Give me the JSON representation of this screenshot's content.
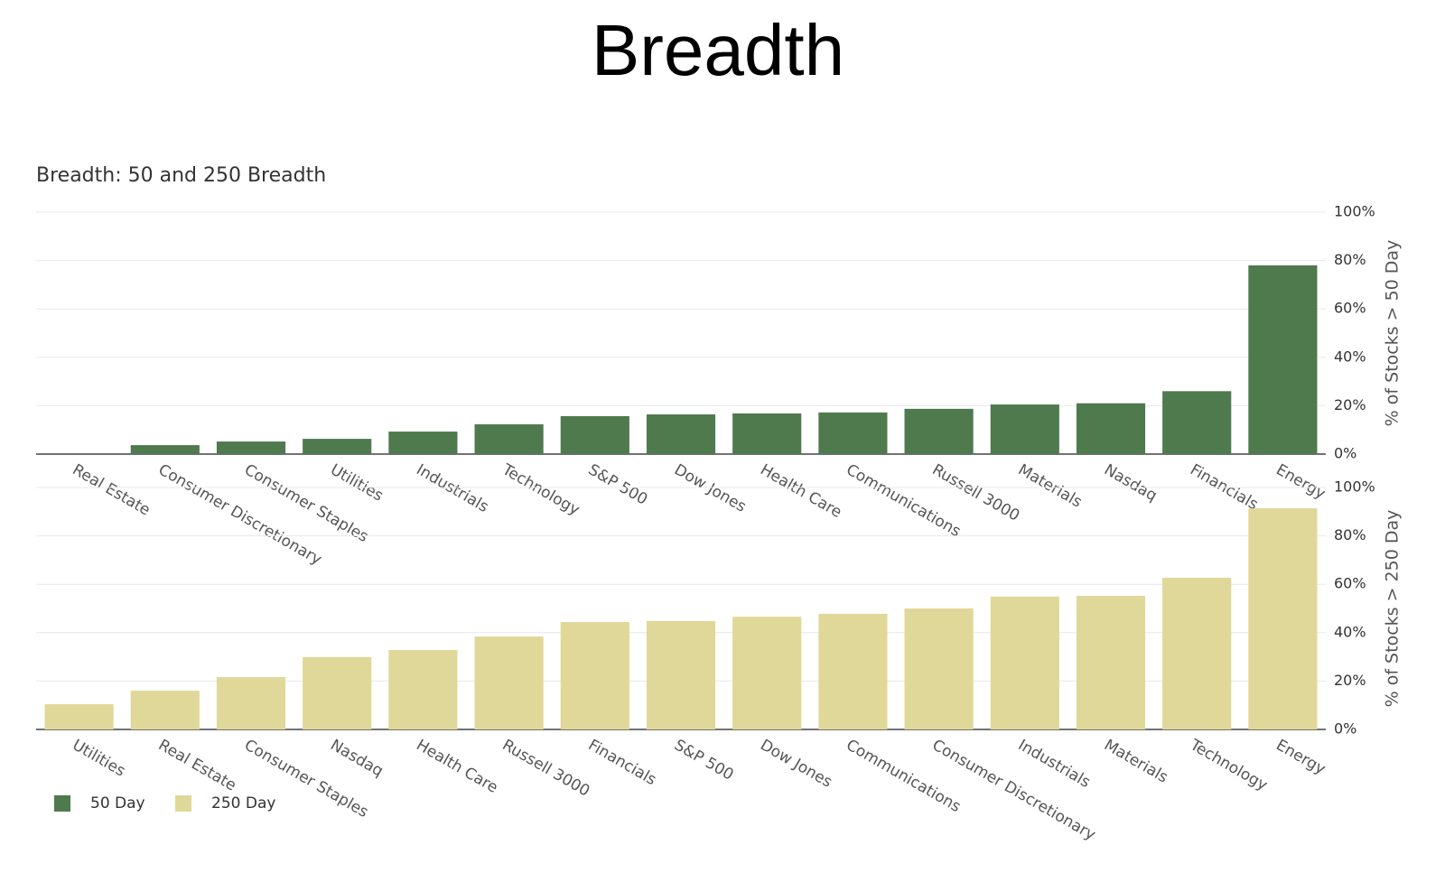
{
  "title": "Breadth",
  "chart_data": [
    {
      "type": "bar",
      "title": "Breadth: 50 and 250 Breadth",
      "categories": [
        "Real Estate",
        "Consumer Discretionary",
        "Consumer Staples",
        "Utilities",
        "Industrials",
        "Technology",
        "S&P 500",
        "Dow Jones",
        "Health Care",
        "Communications",
        "Russell 3000",
        "Materials",
        "Nasdaq",
        "Financials",
        "Energy"
      ],
      "series": [
        {
          "name": "50 Day",
          "color": "#4e7a4e",
          "values": [
            0,
            3.7,
            5.2,
            6.3,
            9.3,
            12.3,
            15.7,
            16.4,
            16.8,
            17.2,
            18.7,
            20.5,
            21,
            26,
            78
          ]
        }
      ],
      "y_label": "% of Stocks > 50 Day",
      "ylim": [
        0,
        100
      ],
      "yticks": [
        {
          "value": 0,
          "label": "0%"
        },
        {
          "value": 20,
          "label": "20%"
        },
        {
          "value": 40,
          "label": "40%"
        },
        {
          "value": 60,
          "label": "60%"
        },
        {
          "value": 80,
          "label": "80%"
        },
        {
          "value": 100,
          "label": "100%"
        }
      ],
      "grid": true
    },
    {
      "type": "bar",
      "categories": [
        "Utilities",
        "Real Estate",
        "Consumer Staples",
        "Nasdaq",
        "Health Care",
        "Russell 3000",
        "Financials",
        "S&P 500",
        "Dow Jones",
        "Communications",
        "Consumer Discretionary",
        "Industrials",
        "Materials",
        "Technology",
        "Energy"
      ],
      "series": [
        {
          "name": "250 Day",
          "color": "#e0d898",
          "values": [
            10.4,
            16,
            21.6,
            29.9,
            32.8,
            38.4,
            44.4,
            44.8,
            46.6,
            47.8,
            50,
            54.9,
            55.2,
            62.7,
            91.4
          ]
        }
      ],
      "y_label": "% of Stocks > 250 Day",
      "ylim": [
        0,
        100
      ],
      "yticks": [
        {
          "value": 0,
          "label": "0%"
        },
        {
          "value": 20,
          "label": "20%"
        },
        {
          "value": 40,
          "label": "40%"
        },
        {
          "value": 60,
          "label": "60%"
        },
        {
          "value": 80,
          "label": "80%"
        },
        {
          "value": 100,
          "label": "100%"
        }
      ],
      "grid": true
    }
  ]
}
